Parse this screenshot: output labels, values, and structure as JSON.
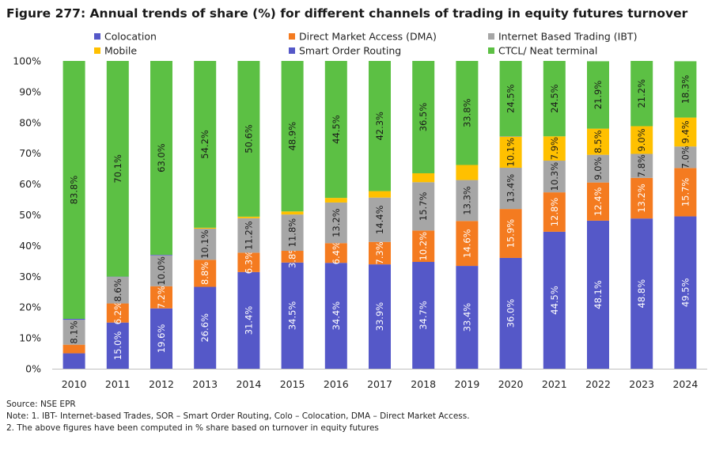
{
  "title": "Figure 277: Annual trends of share (%) for different channels of trading in equity futures turnover",
  "notes": {
    "source": "Source: NSE EPR",
    "note1": "Note: 1. IBT- Internet-based Trades, SOR – Smart Order Routing, Colo – Colocation, DMA – Direct Market Access.",
    "note2": "2. The above figures have been computed in % share based on turnover in equity futures"
  },
  "chart_data": {
    "type": "bar",
    "stacked": true,
    "categories": [
      "2010",
      "2011",
      "2012",
      "2013",
      "2014",
      "2015",
      "2016",
      "2017",
      "2018",
      "2019",
      "2020",
      "2021",
      "2022",
      "2023",
      "2024"
    ],
    "y_ticks": [
      "0%",
      "10%",
      "20%",
      "30%",
      "40%",
      "50%",
      "60%",
      "70%",
      "80%",
      "90%",
      "100%"
    ],
    "ylim": [
      0,
      100
    ],
    "legend_position": "top",
    "series": [
      {
        "name": "Colocation",
        "color": "#5558c8",
        "values": [
          5.0,
          15.0,
          19.6,
          26.6,
          31.4,
          34.5,
          34.4,
          33.9,
          34.7,
          33.4,
          36.0,
          44.5,
          48.1,
          48.8,
          49.5
        ],
        "labels": [
          "",
          "15.0%",
          "19.6%",
          "26.6%",
          "31.4%",
          "34.5%",
          "34.4%",
          "33.9%",
          "34.7%",
          "33.4%",
          "36.0%",
          "44.5%",
          "48.1%",
          "48.8%",
          "49.5%"
        ]
      },
      {
        "name": "Direct Market Access (DMA)",
        "color": "#f47b20",
        "values": [
          2.8,
          6.2,
          7.2,
          8.8,
          6.3,
          3.8,
          6.4,
          7.3,
          10.2,
          14.6,
          15.9,
          12.8,
          12.4,
          13.2,
          15.7
        ],
        "labels": [
          "",
          "6.2%",
          "7.2%",
          "8.8%",
          "6.3%",
          "3.8%",
          "6.4%",
          "7.3%",
          "10.2%",
          "14.6%",
          "15.9%",
          "12.8%",
          "12.4%",
          "13.2%",
          "15.7%"
        ]
      },
      {
        "name": "Internet Based Trading (IBT)",
        "color": "#a6a6a6",
        "values": [
          8.1,
          8.6,
          10.0,
          10.1,
          11.2,
          11.8,
          13.2,
          14.4,
          15.7,
          13.3,
          13.4,
          10.3,
          9.0,
          7.8,
          7.0
        ],
        "labels": [
          "8.1%",
          "8.6%",
          "10.0%",
          "10.1%",
          "11.2%",
          "11.8%",
          "13.2%",
          "14.4%",
          "15.7%",
          "13.3%",
          "13.4%",
          "10.3%",
          "9.0%",
          "7.8%",
          "7.0%"
        ]
      },
      {
        "name": "Mobile",
        "color": "#ffc000",
        "values": [
          0,
          0,
          0,
          0.3,
          0.5,
          1.0,
          1.5,
          2.1,
          2.9,
          4.9,
          10.1,
          7.9,
          8.5,
          9.0,
          9.4
        ],
        "labels": [
          "",
          "",
          "",
          "",
          "",
          "",
          "",
          "",
          "",
          "",
          "10.1%",
          "7.9%",
          "8.5%",
          "9.0%",
          "9.4%"
        ]
      },
      {
        "name": "Smart Order Routing",
        "color": "#5558c8",
        "values": [
          0.3,
          0.1,
          0.2,
          0,
          0,
          0,
          0,
          0,
          0,
          0,
          0.1,
          0,
          0,
          0,
          0
        ],
        "labels": [
          "",
          "",
          "",
          "",
          "",
          "",
          "",
          "",
          "",
          "",
          "",
          "",
          "",
          "",
          ""
        ]
      },
      {
        "name": "CTCL/ Neat terminal",
        "color": "#5cc044",
        "values": [
          83.8,
          70.1,
          63.0,
          54.2,
          50.6,
          48.9,
          44.5,
          42.3,
          36.5,
          33.8,
          24.5,
          24.5,
          21.9,
          21.2,
          18.3
        ],
        "labels": [
          "83.8%",
          "70.1%",
          "63.0%",
          "54.2%",
          "50.6%",
          "48.9%",
          "44.5%",
          "42.3%",
          "36.5%",
          "33.8%",
          "24.5%",
          "24.5%",
          "21.9%",
          "21.2%",
          "18.3%"
        ]
      }
    ]
  }
}
